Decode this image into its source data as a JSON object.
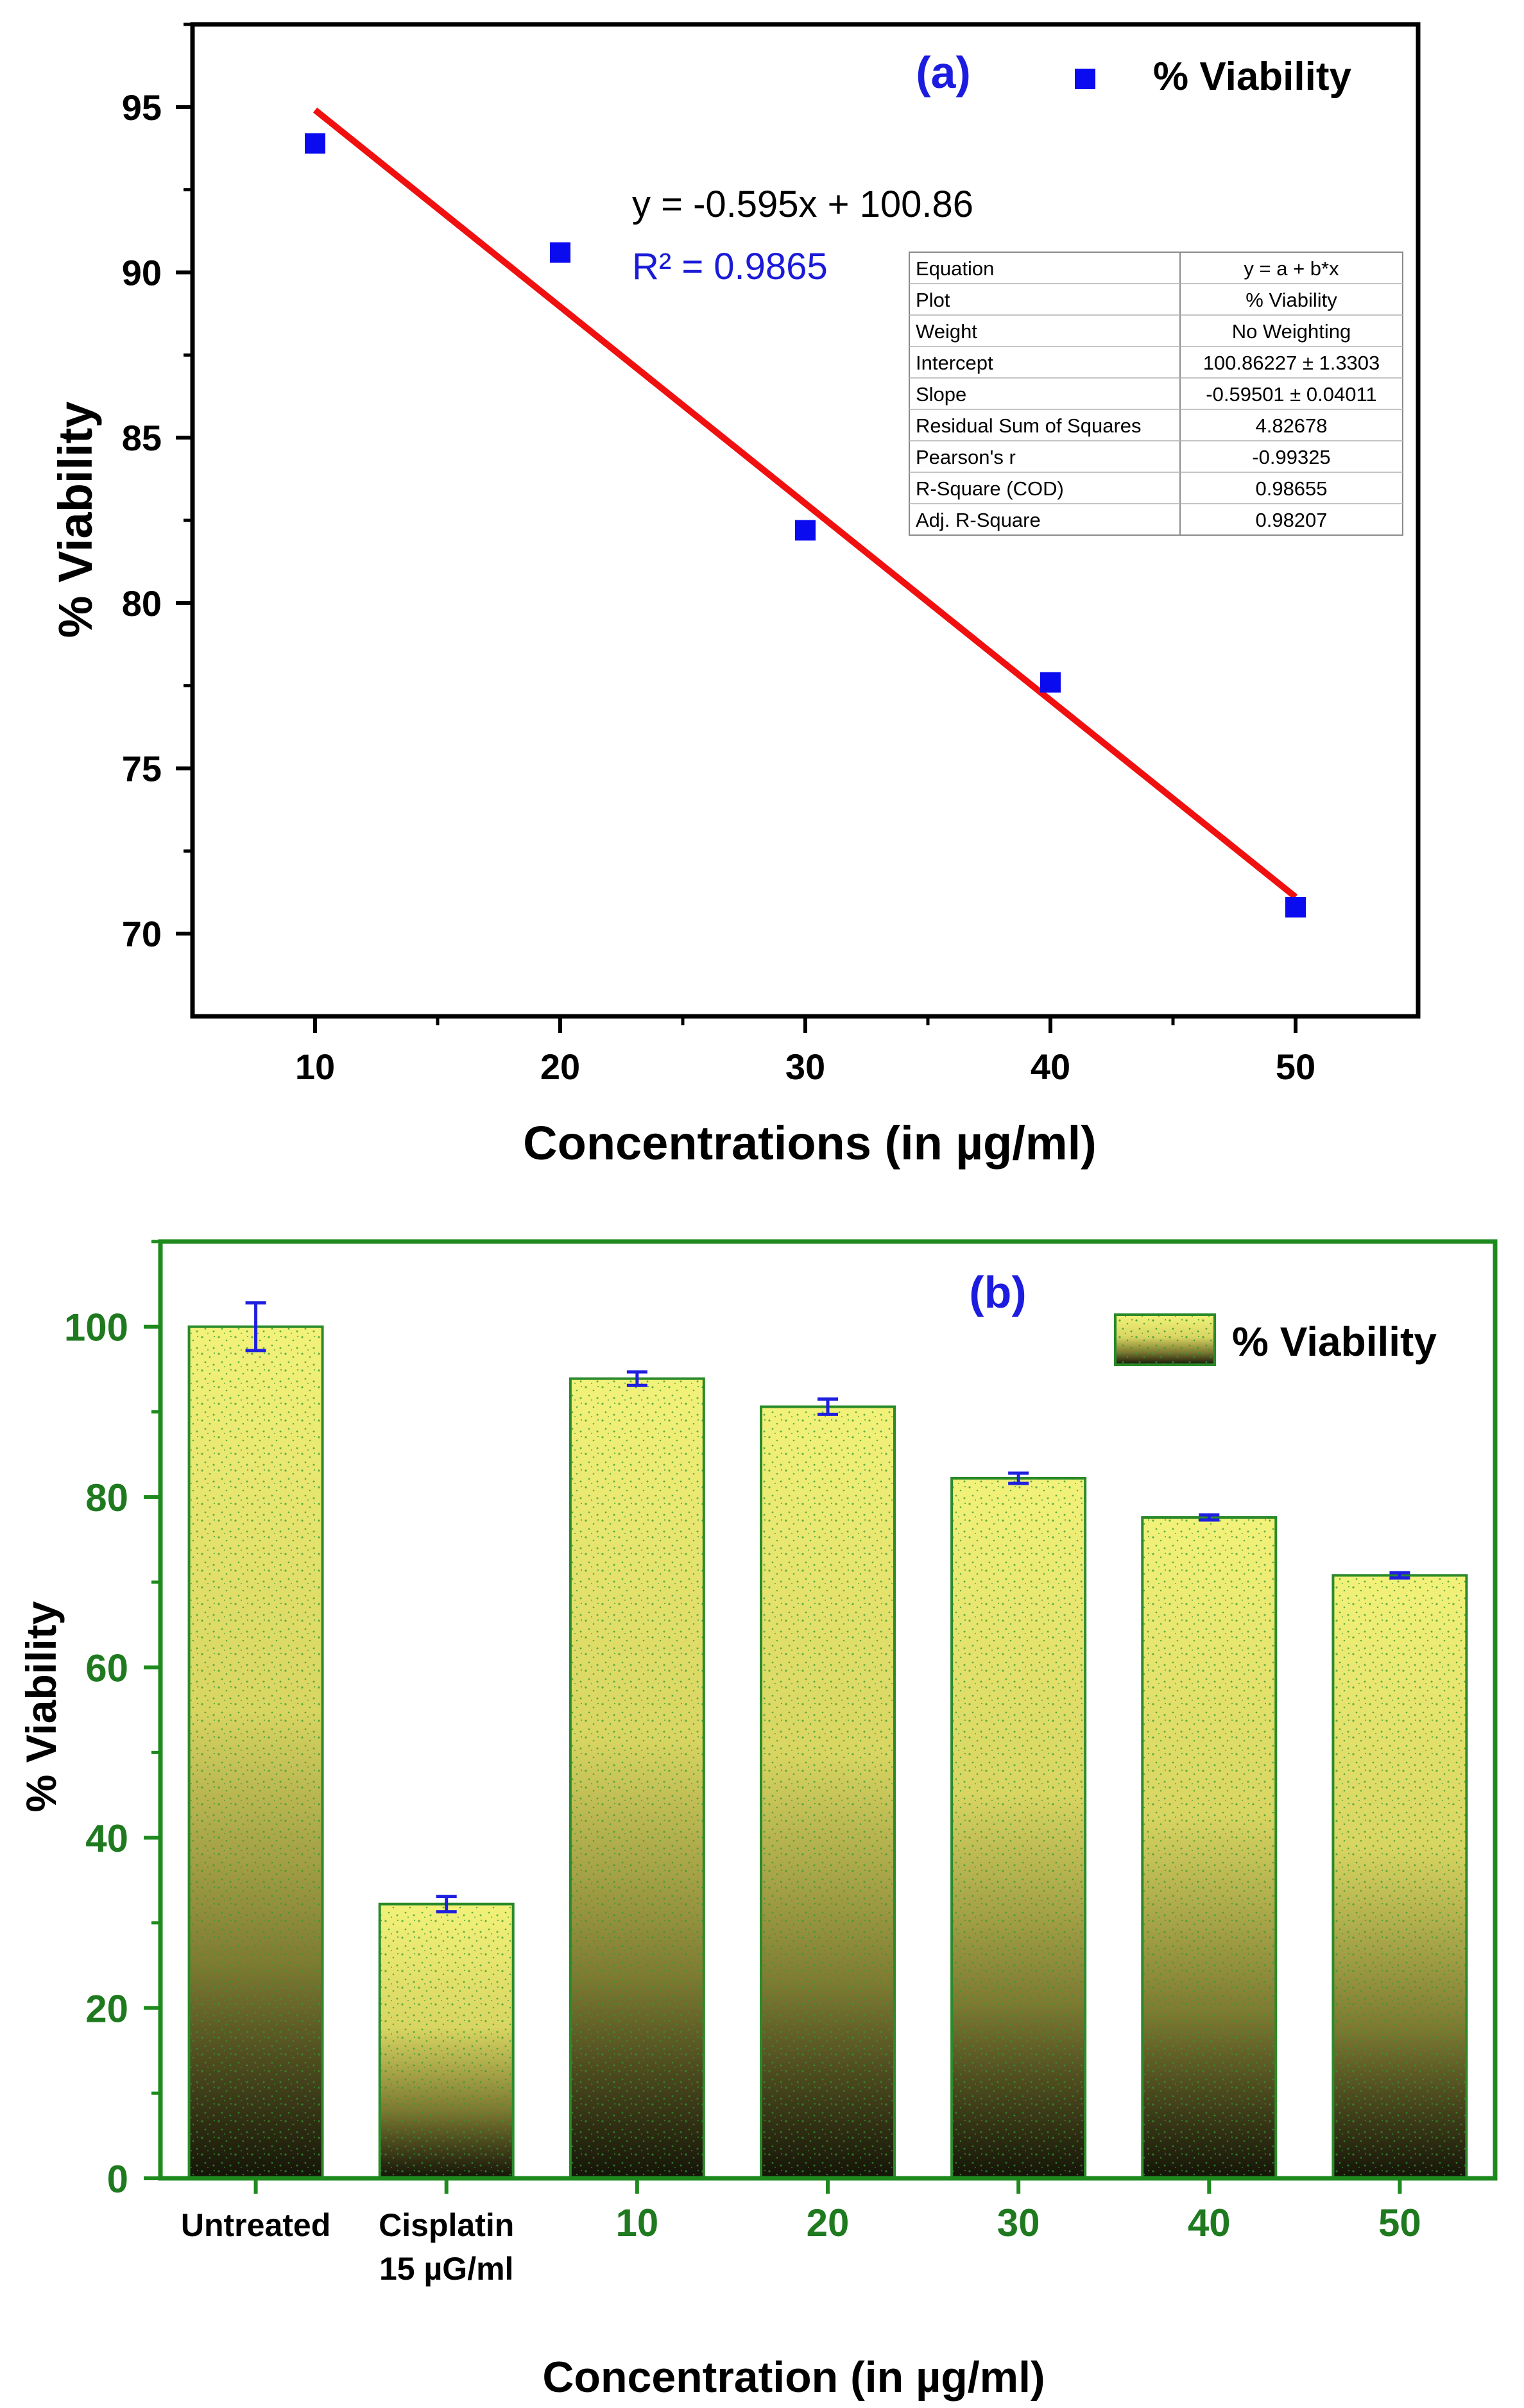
{
  "chart_data": [
    {
      "type": "scatter",
      "panel_label": "(a)",
      "title": "",
      "xlabel": "Concentrations (in µg/ml)",
      "ylabel": "% Viability",
      "xlim": [
        5,
        55
      ],
      "ylim": [
        67.5,
        97.5
      ],
      "x_ticks": [
        10,
        20,
        30,
        40,
        50
      ],
      "y_ticks": [
        70,
        75,
        80,
        85,
        90,
        95
      ],
      "legend": {
        "label": "% Viability",
        "position": "top-right"
      },
      "series": [
        {
          "name": "% Viability",
          "x": [
            10,
            20,
            30,
            40,
            50
          ],
          "y": [
            93.9,
            90.6,
            82.2,
            77.6,
            70.8
          ]
        }
      ],
      "fit": {
        "slope": -0.595,
        "intercept": 100.86,
        "x_range": [
          10,
          50
        ]
      },
      "annotations": {
        "equation": "y = -0.595x + 100.86",
        "r2": "R² = 0.9865"
      },
      "fit_table": {
        "rows": [
          [
            "Equation",
            "y = a + b*x"
          ],
          [
            "Plot",
            "% Viability"
          ],
          [
            "Weight",
            "No Weighting"
          ],
          [
            "Intercept",
            "100.86227 ± 1.3303"
          ],
          [
            "Slope",
            "-0.59501 ± 0.04011"
          ],
          [
            "Residual Sum of Squares",
            "4.82678"
          ],
          [
            "Pearson's r",
            "-0.99325"
          ],
          [
            "R-Square (COD)",
            "0.98655"
          ],
          [
            "Adj. R-Square",
            "0.98207"
          ]
        ]
      }
    },
    {
      "type": "bar",
      "panel_label": "(b)",
      "title": "",
      "xlabel": "Concentration (in µg/ml)",
      "ylabel": "% Viability",
      "ylim": [
        0,
        110
      ],
      "y_ticks": [
        0,
        20,
        40,
        60,
        80,
        100
      ],
      "legend": {
        "label": "% Viability",
        "position": "top-right"
      },
      "categories": [
        {
          "line1": "Untreated",
          "line2": ""
        },
        {
          "line1": "Cisplatin",
          "line2": "15 µG/ml"
        },
        {
          "line1": "10",
          "line2": ""
        },
        {
          "line1": "20",
          "line2": ""
        },
        {
          "line1": "30",
          "line2": ""
        },
        {
          "line1": "40",
          "line2": ""
        },
        {
          "line1": "50",
          "line2": ""
        }
      ],
      "values": [
        100,
        32.2,
        93.9,
        90.6,
        82.2,
        77.6,
        70.8
      ],
      "errors": [
        2.8,
        0.9,
        0.8,
        0.9,
        0.6,
        0.3,
        0.3
      ]
    }
  ],
  "colors": {
    "axes": "#000000",
    "marker": "#0b0bf0",
    "fit_line": "#f01010",
    "r2_text": "#1a1ad8",
    "panel_label": "#1c1ce0",
    "frame_b": "#1e8a1e",
    "tick_text_b": "#1f7a1f",
    "bar_top": "#f2f27a",
    "bar_mid": "#b7b54c",
    "bar_bottom": "#141408",
    "bar_edge": "#2a8a2a",
    "error_bar": "#1f1fe0",
    "table_border": "#9a9a9a"
  }
}
